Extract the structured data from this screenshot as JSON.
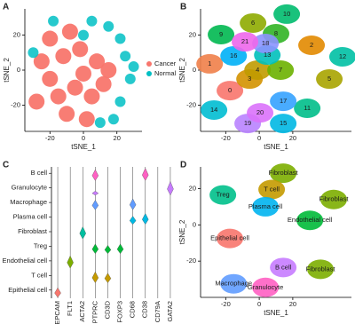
{
  "chart_data": [
    {
      "label": "A",
      "type": "scatter",
      "xlabel": "tSNE_1",
      "ylabel": "tSNE_2",
      "xlim": [
        -35,
        35
      ],
      "ylim": [
        -35,
        35
      ],
      "xticks": [
        -20,
        0,
        20
      ],
      "yticks": [
        -20,
        0,
        20
      ],
      "legend": "right",
      "series": [
        {
          "name": "Cancer",
          "color": "#F8766D",
          "x": [
            -25,
            -20,
            -15,
            -10,
            -5,
            0,
            5,
            -12,
            -2,
            8,
            -20,
            -8,
            12,
            -28,
            2,
            15
          ],
          "y": [
            5,
            -5,
            -15,
            -25,
            -10,
            -2,
            -15,
            8,
            12,
            5,
            18,
            22,
            -8,
            -18,
            -28,
            0
          ]
        },
        {
          "name": "Normal",
          "color": "#00BFC4",
          "x": [
            5,
            15,
            22,
            25,
            28,
            22,
            10,
            -18,
            -30,
            18,
            0,
            30
          ],
          "y": [
            28,
            25,
            18,
            8,
            -5,
            -18,
            -30,
            28,
            10,
            -28,
            20,
            2
          ]
        }
      ]
    },
    {
      "label": "B",
      "type": "scatter",
      "xlabel": "tSNE_1",
      "ylabel": "tSNE_2",
      "xlim": [
        -35,
        55
      ],
      "ylim": [
        -35,
        35
      ],
      "xticks": [
        -20,
        0,
        20
      ],
      "yticks": [
        -20,
        0,
        20
      ],
      "points": {
        "labels": [
          "0",
          "1",
          "2",
          "3",
          "4",
          "5",
          "6",
          "7",
          "8",
          "9",
          "10",
          "11",
          "12",
          "13",
          "14",
          "15",
          "16",
          "17",
          "18",
          "19",
          "20",
          "21"
        ],
        "x": [
          -17.5,
          -29.6,
          31.2,
          -5.8,
          -1,
          41.8,
          -3.7,
          12.7,
          10,
          -22.8,
          16.4,
          28.6,
          49.7,
          4.8,
          -27,
          14.3,
          -15.3,
          14.3,
          3.7,
          -6.9,
          0.5,
          -8.5
        ],
        "y": [
          -11.7,
          3.6,
          14.2,
          -5.1,
          0,
          -5.1,
          26.9,
          0,
          20.8,
          20.3,
          32,
          -21.8,
          7.6,
          8.6,
          -22.8,
          -30.5,
          8.1,
          -17.8,
          15.2,
          -30.5,
          -24.4,
          16.2
        ],
        "colors": [
          "#F8766D",
          "#EF7F49",
          "#E28A00",
          "#D39200",
          "#C09B00",
          "#A9A400",
          "#8EAB00",
          "#6BB100",
          "#31B425",
          "#00B850",
          "#00BB6E",
          "#00BE8A",
          "#00C0A4",
          "#00C0BB",
          "#00BDD1",
          "#00B8E3",
          "#00B0F6",
          "#35A2FF",
          "#8B93FF",
          "#B983FF",
          "#DA72FB",
          "#EE67EB"
        ]
      }
    },
    {
      "label": "C",
      "type": "violin",
      "rows": [
        "B cell",
        "Granulocyte",
        "Macrophage",
        "Plasma cell",
        "Fibroblast",
        "Treg",
        "Endothelial cell",
        "T cell",
        "Epithelial cell"
      ],
      "genes": [
        "EPCAM",
        "FLT1",
        "ACTA2",
        "PTPRC",
        "CD3D",
        "FOXP3",
        "CD68",
        "CD38",
        "CD79A",
        "GATA2"
      ],
      "colors": [
        "#FF61C3",
        "#C77CFF",
        "#619CFF",
        "#00B9E3",
        "#00BFA0",
        "#00BA38",
        "#7CAE00",
        "#C49A00",
        "#F8766D"
      ],
      "values": [
        [
          0,
          0,
          0,
          0.8,
          0,
          0,
          0,
          0.9,
          0,
          0
        ],
        [
          0,
          0,
          0,
          0.3,
          0,
          0,
          0,
          0,
          0,
          1
        ],
        [
          0,
          0,
          0,
          0.7,
          0,
          0,
          0.8,
          0,
          0,
          0
        ],
        [
          0,
          0,
          0,
          0,
          0,
          0,
          0.6,
          0.8,
          0,
          0
        ],
        [
          0,
          0,
          0.9,
          0,
          0,
          0,
          0,
          0,
          0,
          0
        ],
        [
          0,
          0,
          0,
          0.7,
          0.6,
          0.7,
          0,
          0,
          0,
          0
        ],
        [
          0,
          0.9,
          0,
          0,
          0,
          0,
          0,
          0,
          0,
          0
        ],
        [
          0,
          0,
          0,
          0.8,
          0.7,
          0,
          0,
          0,
          0,
          0
        ],
        [
          0.7,
          0,
          0,
          0,
          0,
          0,
          0,
          0,
          0,
          0
        ]
      ]
    },
    {
      "label": "D",
      "type": "scatter",
      "xlabel": "tSNE_1",
      "ylabel": "tSNE_2",
      "xlim": [
        -35,
        55
      ],
      "ylim": [
        -40,
        32
      ],
      "xticks": [
        -20,
        0,
        20
      ],
      "yticks": [
        -20,
        0,
        20
      ],
      "points": {
        "labels": [
          "Fibroblast",
          "T cell",
          "Treg",
          "Fibroblast",
          "Plasma cell",
          "Epithelial cell",
          "Endothelial cell",
          "B cell",
          "Fibroblast",
          "Macrophage",
          "Granulocyte"
        ],
        "x": [
          14.3,
          7.4,
          -21.7,
          44.4,
          3.7,
          -17.5,
          30.2,
          14.3,
          36.5,
          -15.3,
          3.7
        ],
        "y": [
          28.5,
          19.5,
          16.5,
          14,
          10,
          -7.5,
          2.5,
          -23.5,
          -24.5,
          -32.5,
          -34.5
        ],
        "colors": [
          "#7CAE00",
          "#C49A00",
          "#00C08B",
          "#7CAE00",
          "#00B4F0",
          "#F8766D",
          "#00BA38",
          "#C77CFF",
          "#7CAE00",
          "#619CFF",
          "#FF61C3"
        ]
      }
    }
  ]
}
